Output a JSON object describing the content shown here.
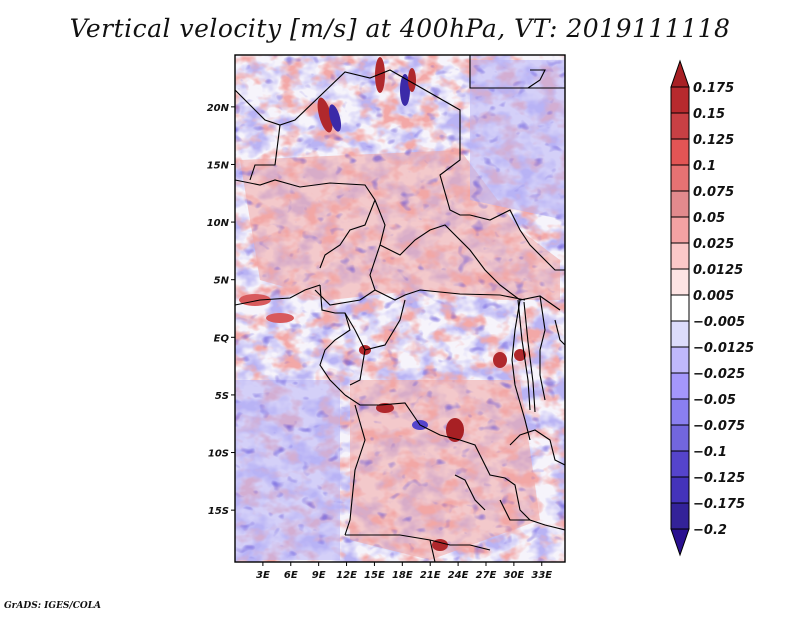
{
  "title": "Vertical velocity [m/s] at 400hPa, VT: 2019111118",
  "credit": "GrADS: IGES/COLA",
  "map": {
    "variable": "Vertical velocity",
    "units": "m/s",
    "level": "400hPa",
    "valid_time": "2019111118",
    "lon_range": [
      0,
      35.5
    ],
    "lat_range": [
      -19.5,
      24.5
    ],
    "lat_ticks": [
      {
        "value": 20,
        "label": "20N"
      },
      {
        "value": 15,
        "label": "15N"
      },
      {
        "value": 10,
        "label": "10N"
      },
      {
        "value": 5,
        "label": "5N"
      },
      {
        "value": 0,
        "label": "EQ"
      },
      {
        "value": -5,
        "label": "5S"
      },
      {
        "value": -10,
        "label": "10S"
      },
      {
        "value": -15,
        "label": "15S"
      }
    ],
    "lon_ticks": [
      {
        "value": 3,
        "label": "3E"
      },
      {
        "value": 6,
        "label": "6E"
      },
      {
        "value": 9,
        "label": "9E"
      },
      {
        "value": 12,
        "label": "12E"
      },
      {
        "value": 15,
        "label": "15E"
      },
      {
        "value": 18,
        "label": "18E"
      },
      {
        "value": 21,
        "label": "21E"
      },
      {
        "value": 24,
        "label": "24E"
      },
      {
        "value": 27,
        "label": "27E"
      },
      {
        "value": 30,
        "label": "30E"
      },
      {
        "value": 33,
        "label": "33E"
      }
    ]
  },
  "colorbar": {
    "labels": [
      "0.175",
      "0.15",
      "0.125",
      "0.1",
      "0.075",
      "0.05",
      "0.025",
      "0.0125",
      "0.005",
      "-0.005",
      "-0.0125",
      "-0.025",
      "-0.05",
      "-0.075",
      "-0.1",
      "-0.125",
      "-0.175",
      "-0.2"
    ],
    "colors": [
      "#a82024",
      "#b72a2e",
      "#c84044",
      "#e25555",
      "#e67273",
      "#e28a8d",
      "#f4a2a3",
      "#fbc8c8",
      "#fde4e4",
      "#ffffff",
      "#dcdcfa",
      "#c0b8fb",
      "#a497fb",
      "#8a7ff0",
      "#7266dd",
      "#5544cc",
      "#4433bb",
      "#332299",
      "#2a1090"
    ],
    "extend": "both"
  }
}
